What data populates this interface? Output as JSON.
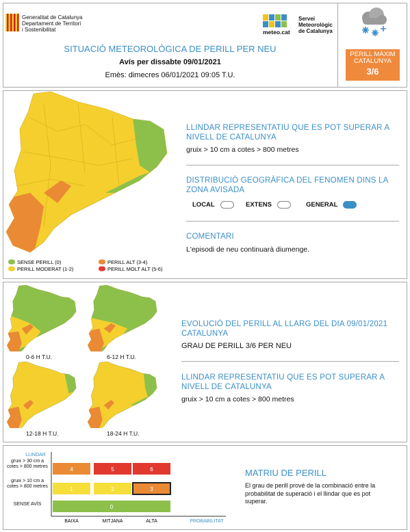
{
  "header": {
    "org_lines": [
      "Generalitat de Catalunya",
      "Departament de Territori",
      "i Sostenibilitat"
    ],
    "service_logo": "meteo.cat",
    "service_lines": [
      "Servei",
      "Meteorològic",
      "de Catalunya"
    ],
    "title": "SITUACIÓ METEOROLÒGICA DE PERILL PER NEU",
    "subtitle": "Avís per dissabte 09/01/2021",
    "issued": "Emès: dimecres 06/01/2021 09:05 T.U.",
    "max_danger": {
      "label_lines": [
        "PERILL MÀXIM",
        "CATALUNYA"
      ],
      "level": "3/6",
      "color": "#ef8a3c"
    }
  },
  "map_section": {
    "legend": [
      {
        "label": "SENSE PERILL (0)",
        "color": "#8cc04b"
      },
      {
        "label": "PERILL MODERAT (1-2)",
        "color": "#f4cf2e"
      },
      {
        "label": "PERILL ALT (3-4)",
        "color": "#ea8a34"
      },
      {
        "label": "PERILL MOLT ALT (5-6)",
        "color": "#e2392f"
      }
    ],
    "threshold": {
      "heading": "LLINDAR REPRESENTATIU QUE ES POT SUPERAR A NIVELL DE CATALUNYA",
      "text": "gruix > 10 cm a cotes > 800 metres"
    },
    "distribution": {
      "heading": "DISTRIBUCIÓ GEOGRÀFICA DEL FENOMEN DINS LA ZONA AVISADA",
      "options": [
        {
          "label": "LOCAL",
          "selected": false
        },
        {
          "label": "EXTENS",
          "selected": false
        },
        {
          "label": "GENERAL",
          "selected": true
        }
      ]
    },
    "comment": {
      "heading": "COMENTARI",
      "text": "L'episodi de neu continuarà diumenge."
    }
  },
  "evolution": {
    "maps": [
      "0-6 H T.U.",
      "6-12 H T.U.",
      "12-18 H T.U.",
      "18-24 H T.U."
    ],
    "heading": "EVOLUCIÓ DEL PERILL AL LLARG DEL DIA 09/01/2021 CATALUNYA",
    "level_text": "GRAU DE PERILL 3/6 PER NEU",
    "threshold": {
      "heading": "LLINDAR REPRESENTATIU QUE ES POT SUPERAR A NIVELL DE CATALUNYA",
      "text": "gruix > 10 cm a cotes > 800 metres"
    }
  },
  "matrix": {
    "y_axis_label": "LLINDAR",
    "x_axis_label": "PROBABILITAT",
    "columns": [
      "BAIXA",
      "MITJANA",
      "ALTA"
    ],
    "rows": [
      {
        "label": "gruix > 30 cm a cotes > 800 metres",
        "cells": [
          "4",
          "5",
          "6"
        ],
        "colors": [
          "#ea8a34",
          "#e2392f",
          "#e2392f"
        ]
      },
      {
        "label": "gruix > 10 cm a cotes > 800 metres",
        "cells": [
          "1",
          "2",
          "3"
        ],
        "colors": [
          "#f6df3a",
          "#f6df3a",
          "#ea8a34"
        ]
      },
      {
        "label": "SENSE AVÍS",
        "cells": [
          "0"
        ],
        "colors": [
          "#8cc04b"
        ]
      }
    ],
    "highlight": {
      "row": 1,
      "col": 2
    },
    "title": "MATRIU DE PERILL",
    "description": "El grau de perill prové de la combinació entre la probabilitat de superació i el llindar que es pot superar."
  }
}
